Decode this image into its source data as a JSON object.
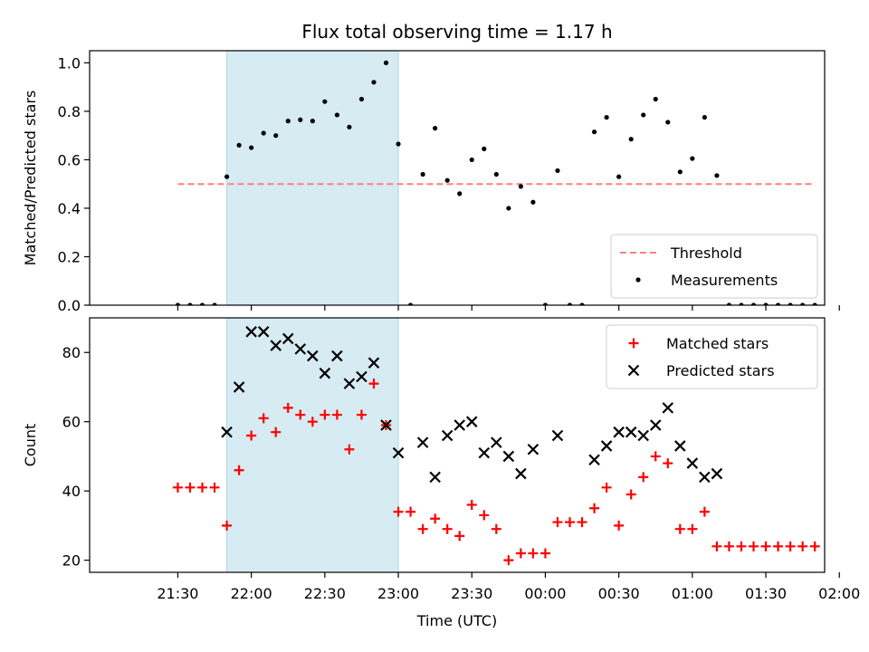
{
  "chart_data": {
    "title": "Flux total observing time = 1.17 h",
    "xlabel": "Time (UTC)",
    "x_ticks": [
      "21:30",
      "22:00",
      "22:30",
      "23:00",
      "23:30",
      "00:00",
      "00:30",
      "01:00",
      "01:30",
      "02:00"
    ],
    "highlight_range": [
      "21:50",
      "23:00"
    ],
    "highlight_color": "#add8e6",
    "panels": [
      {
        "type": "scatter",
        "ylabel": "Matched/Predicted stars",
        "ylim": [
          0,
          1.05
        ],
        "y_ticks": [
          "0.0",
          "0.2",
          "0.4",
          "0.6",
          "0.8",
          "1.0"
        ],
        "legend": "bottom-right",
        "series": [
          {
            "name": "Threshold",
            "kind": "dashed-line",
            "color": "#ff7f7f",
            "points": [
              [
                "21:30",
                0.5
              ],
              [
                "01:50",
                0.5
              ]
            ]
          },
          {
            "name": "Measurements",
            "kind": "dot",
            "color": "#000000",
            "points": [
              [
                "21:30",
                0
              ],
              [
                "21:35",
                0
              ],
              [
                "21:40",
                0
              ],
              [
                "21:45",
                0
              ],
              [
                "21:50",
                0.53
              ],
              [
                "21:55",
                0.66
              ],
              [
                "22:00",
                0.65
              ],
              [
                "22:05",
                0.71
              ],
              [
                "22:10",
                0.7
              ],
              [
                "22:15",
                0.76
              ],
              [
                "22:20",
                0.765
              ],
              [
                "22:25",
                0.76
              ],
              [
                "22:30",
                0.84
              ],
              [
                "22:35",
                0.785
              ],
              [
                "22:40",
                0.735
              ],
              [
                "22:45",
                0.85
              ],
              [
                "22:50",
                0.92
              ],
              [
                "22:55",
                1.0
              ],
              [
                "23:00",
                0.665
              ],
              [
                "23:05",
                0
              ],
              [
                "23:10",
                0.54
              ],
              [
                "23:15",
                0.73
              ],
              [
                "23:20",
                0.515
              ],
              [
                "23:25",
                0.46
              ],
              [
                "23:30",
                0.6
              ],
              [
                "23:35",
                0.645
              ],
              [
                "23:40",
                0.54
              ],
              [
                "23:45",
                0.4
              ],
              [
                "23:50",
                0.49
              ],
              [
                "23:55",
                0.425
              ],
              [
                "00:00",
                0
              ],
              [
                "00:05",
                0.555
              ],
              [
                "00:10",
                0
              ],
              [
                "00:15",
                0
              ],
              [
                "00:20",
                0.715
              ],
              [
                "00:25",
                0.775
              ],
              [
                "00:30",
                0.53
              ],
              [
                "00:35",
                0.685
              ],
              [
                "00:40",
                0.785
              ],
              [
                "00:45",
                0.85
              ],
              [
                "00:50",
                0.755
              ],
              [
                "00:55",
                0.55
              ],
              [
                "01:00",
                0.605
              ],
              [
                "01:05",
                0.775
              ],
              [
                "01:10",
                0.535
              ],
              [
                "01:15",
                0
              ],
              [
                "01:20",
                0
              ],
              [
                "01:25",
                0
              ],
              [
                "01:30",
                0
              ],
              [
                "01:35",
                0
              ],
              [
                "01:40",
                0
              ],
              [
                "01:45",
                0
              ],
              [
                "01:50",
                0
              ]
            ]
          }
        ]
      },
      {
        "type": "scatter",
        "ylabel": "Count",
        "ylim": [
          16.5,
          90
        ],
        "y_ticks": [
          "20",
          "40",
          "60",
          "80"
        ],
        "legend": "top-right",
        "series": [
          {
            "name": "Matched stars",
            "kind": "plus",
            "color": "#ff0000",
            "points": [
              [
                "21:30",
                41
              ],
              [
                "21:35",
                41
              ],
              [
                "21:40",
                41
              ],
              [
                "21:45",
                41
              ],
              [
                "21:50",
                30
              ],
              [
                "21:55",
                46
              ],
              [
                "22:00",
                56
              ],
              [
                "22:05",
                61
              ],
              [
                "22:10",
                57
              ],
              [
                "22:15",
                64
              ],
              [
                "22:20",
                62
              ],
              [
                "22:25",
                60
              ],
              [
                "22:30",
                62
              ],
              [
                "22:35",
                62
              ],
              [
                "22:40",
                52
              ],
              [
                "22:45",
                62
              ],
              [
                "22:50",
                71
              ],
              [
                "22:55",
                59
              ],
              [
                "23:00",
                34
              ],
              [
                "23:05",
                34
              ],
              [
                "23:10",
                29
              ],
              [
                "23:15",
                32
              ],
              [
                "23:20",
                29
              ],
              [
                "23:25",
                27
              ],
              [
                "23:30",
                36
              ],
              [
                "23:35",
                33
              ],
              [
                "23:40",
                29
              ],
              [
                "23:45",
                20
              ],
              [
                "23:50",
                22
              ],
              [
                "23:55",
                22
              ],
              [
                "00:00",
                22
              ],
              [
                "00:05",
                31
              ],
              [
                "00:10",
                31
              ],
              [
                "00:15",
                31
              ],
              [
                "00:20",
                35
              ],
              [
                "00:25",
                41
              ],
              [
                "00:30",
                30
              ],
              [
                "00:35",
                39
              ],
              [
                "00:40",
                44
              ],
              [
                "00:45",
                50
              ],
              [
                "00:50",
                48
              ],
              [
                "00:55",
                29
              ],
              [
                "01:00",
                29
              ],
              [
                "01:05",
                34
              ],
              [
                "01:10",
                24
              ],
              [
                "01:15",
                24
              ],
              [
                "01:20",
                24
              ],
              [
                "01:25",
                24
              ],
              [
                "01:30",
                24
              ],
              [
                "01:35",
                24
              ],
              [
                "01:40",
                24
              ],
              [
                "01:45",
                24
              ],
              [
                "01:50",
                24
              ]
            ]
          },
          {
            "name": "Predicted stars",
            "kind": "cross",
            "color": "#000000",
            "points": [
              [
                "21:50",
                57
              ],
              [
                "21:55",
                70
              ],
              [
                "22:00",
                86
              ],
              [
                "22:05",
                86
              ],
              [
                "22:10",
                82
              ],
              [
                "22:15",
                84
              ],
              [
                "22:20",
                81
              ],
              [
                "22:25",
                79
              ],
              [
                "22:30",
                74
              ],
              [
                "22:35",
                79
              ],
              [
                "22:40",
                71
              ],
              [
                "22:45",
                73
              ],
              [
                "22:50",
                77
              ],
              [
                "22:55",
                59
              ],
              [
                "23:00",
                51
              ],
              [
                "23:10",
                54
              ],
              [
                "23:15",
                44
              ],
              [
                "23:20",
                56
              ],
              [
                "23:25",
                59
              ],
              [
                "23:30",
                60
              ],
              [
                "23:35",
                51
              ],
              [
                "23:40",
                54
              ],
              [
                "23:45",
                50
              ],
              [
                "23:50",
                45
              ],
              [
                "23:55",
                52
              ],
              [
                "00:05",
                56
              ],
              [
                "00:20",
                49
              ],
              [
                "00:25",
                53
              ],
              [
                "00:30",
                57
              ],
              [
                "00:35",
                57
              ],
              [
                "00:40",
                56
              ],
              [
                "00:45",
                59
              ],
              [
                "00:50",
                64
              ],
              [
                "00:55",
                53
              ],
              [
                "01:00",
                48
              ],
              [
                "01:05",
                44
              ],
              [
                "01:10",
                45
              ]
            ]
          }
        ]
      }
    ]
  }
}
